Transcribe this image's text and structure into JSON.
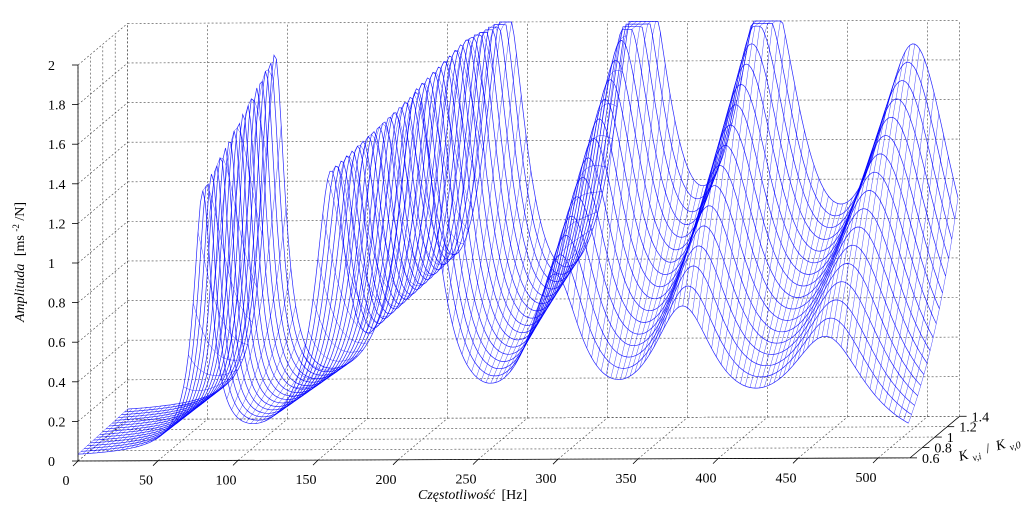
{
  "chart_data": {
    "type": "surface-3d",
    "title": "",
    "xlabel": {
      "italic": "Częstotliwość",
      "unit": "[Hz]"
    },
    "ylabel": {
      "italic": "Amplituda",
      "unit_pre": "[ms",
      "unit_sup": "-2",
      "unit_post": "/N]"
    },
    "zlabel": {
      "k": "K",
      "sub_i": "v,i",
      "sep": "/",
      "sub_0": "v,0"
    },
    "x_ticks": [
      "0",
      "50",
      "100",
      "150",
      "200",
      "250",
      "300",
      "350",
      "400",
      "450",
      "500"
    ],
    "y_ticks": [
      "0",
      "0.2",
      "0.4",
      "0.6",
      "0.8",
      "1",
      "1.2",
      "1.4",
      "1.6",
      "1.8",
      "2"
    ],
    "z_ticks": [
      "0.6",
      "0.8",
      "1",
      "1.2",
      "1.4"
    ],
    "xlim": [
      0,
      520
    ],
    "ylim": [
      0,
      2
    ],
    "zlim": [
      0.6,
      1.4
    ],
    "grid": true,
    "mesh_color": "#0000ff",
    "peaks": [
      {
        "freq_front": 78,
        "freq_back": 92,
        "amp_front": 1.3,
        "amp_back": 1.75
      },
      {
        "freq_front": 158,
        "freq_back": 180,
        "amp_front": 1.3,
        "amp_back": 1.4
      },
      {
        "freq_front": 212,
        "freq_back": 236,
        "amp_front": 1.75,
        "amp_back": 1.85
      },
      {
        "freq_front": 298,
        "freq_back": 322,
        "amp_front": 0.8,
        "amp_back": 1.98
      },
      {
        "freq_front": 378,
        "freq_back": 400,
        "amp_front": 0.65,
        "amp_back": 1.85
      },
      {
        "freq_front": 468,
        "freq_back": 492,
        "amp_front": 0.55,
        "amp_back": 1.7
      }
    ],
    "k_lines": [
      0.6,
      0.65,
      0.7,
      0.75,
      0.8,
      0.85,
      0.9,
      0.95,
      1.0,
      1.05,
      1.1,
      1.15,
      1.2,
      1.25,
      1.3,
      1.35,
      1.4
    ]
  }
}
